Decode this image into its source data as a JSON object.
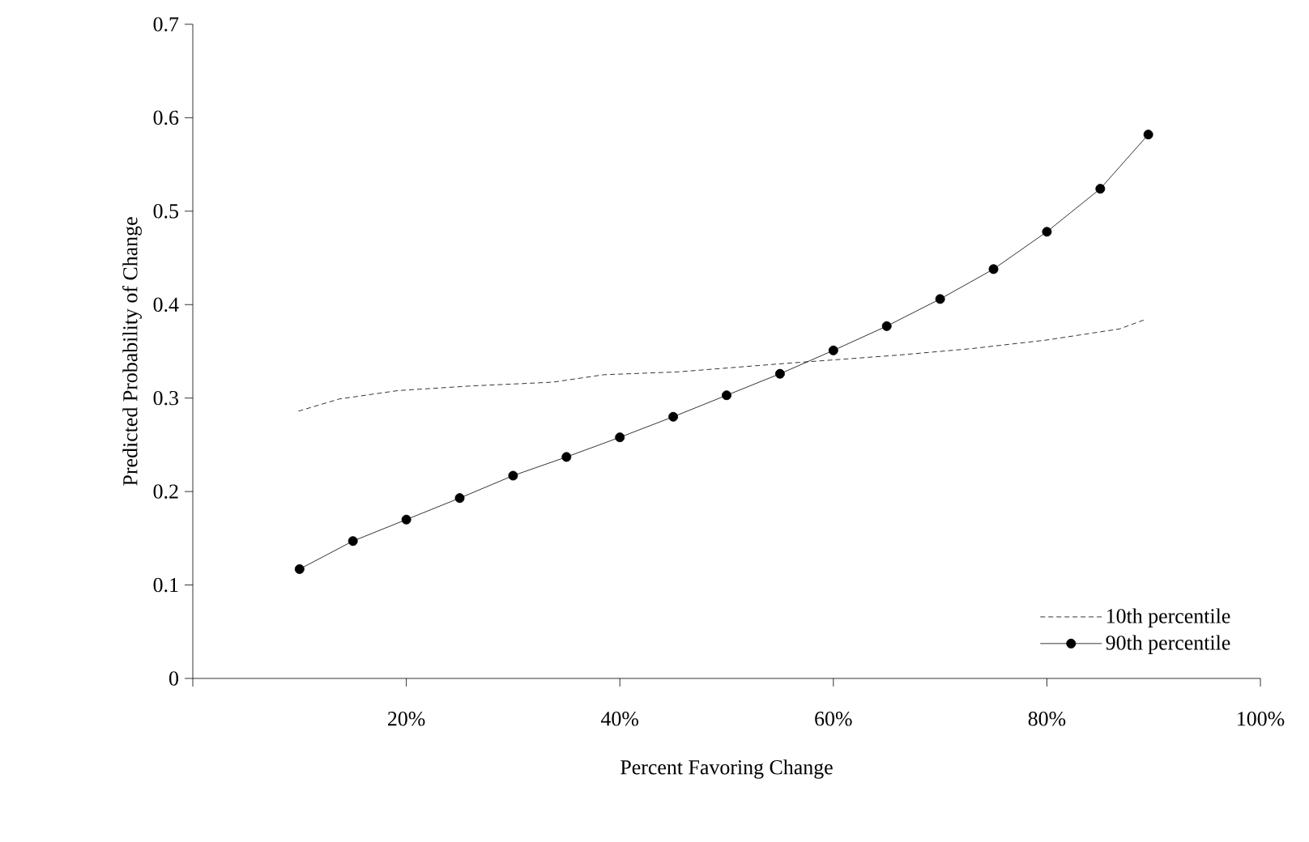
{
  "chart_data": {
    "type": "line",
    "xlabel": "Percent Favoring Change",
    "ylabel": "Predicted Probability of Change",
    "xlim": [
      0,
      100
    ],
    "ylim": [
      0,
      0.7
    ],
    "xticks": [
      {
        "value": 0,
        "label": null
      },
      {
        "value": 20,
        "label": "20%"
      },
      {
        "value": 40,
        "label": "40%"
      },
      {
        "value": 60,
        "label": "60%"
      },
      {
        "value": 80,
        "label": "80%"
      },
      {
        "value": 100,
        "label": "100%"
      }
    ],
    "yticks": [
      0,
      0.1,
      0.2,
      0.3,
      0.4,
      0.5,
      0.6,
      0.7
    ],
    "legend": "bottom right",
    "grid": false,
    "series": [
      {
        "name": "10th percentile",
        "color": "#000000",
        "line_style": "dashed",
        "marker": "none",
        "x": [
          9.9,
          13.7,
          19.2,
          26.1,
          33.7,
          38.5,
          45.4,
          55.4,
          60.2,
          66.1,
          73,
          79.9,
          86.8,
          89.2
        ],
        "values": [
          0.286,
          0.299,
          0.308,
          0.313,
          0.317,
          0.325,
          0.328,
          0.337,
          0.341,
          0.346,
          0.353,
          0.362,
          0.374,
          0.384
        ]
      },
      {
        "name": "90th percentile",
        "color": "#000000",
        "line_style": "solid",
        "marker": "circle",
        "x": [
          10,
          15,
          20,
          25,
          30,
          35,
          40,
          45,
          50,
          55,
          60,
          65,
          70,
          75,
          80,
          85,
          89.5
        ],
        "values": [
          0.117,
          0.147,
          0.17,
          0.193,
          0.217,
          0.237,
          0.258,
          0.28,
          0.303,
          0.326,
          0.351,
          0.377,
          0.406,
          0.438,
          0.478,
          0.524,
          0.582
        ]
      }
    ]
  }
}
